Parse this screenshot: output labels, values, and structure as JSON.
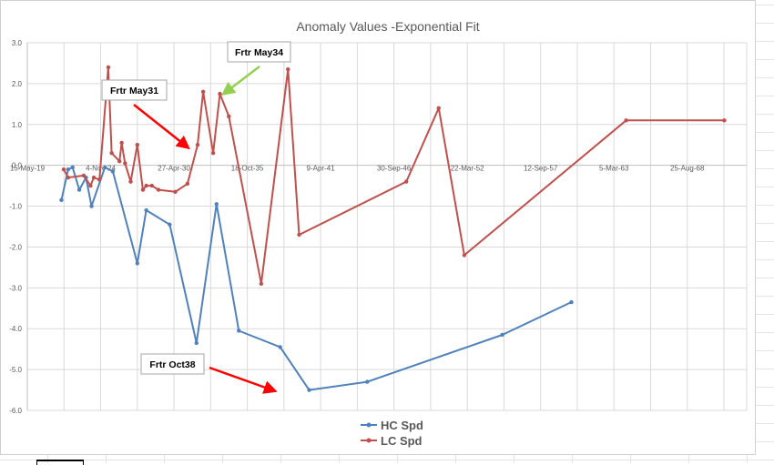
{
  "chart_data": {
    "type": "line",
    "title": "Anomaly Values -Exponential Fit",
    "xlabel": "",
    "ylabel": "",
    "ylim": [
      -6.0,
      3.0
    ],
    "y_ticks": [
      "3.0",
      "2.0",
      "1.0",
      "0.0",
      "-1.0",
      "-2.0",
      "-3.0",
      "-4.0",
      "-5.0",
      "-6.0"
    ],
    "x_ticks": [
      "15-May-19",
      "4-Nov-24",
      "27-Apr-30",
      "18-Oct-35",
      "9-Apr-41",
      "30-Sep-46",
      "22-Mar-52",
      "12-Sep-57",
      "5-Mar-63",
      "25-Aug-68"
    ],
    "grid": true,
    "legend_position": "bottom",
    "series": [
      {
        "name": "HC Spd",
        "color": "#4f81bd",
        "x": [
          "1921-12-01",
          "1922-06-01",
          "1922-10-01",
          "1923-04-01",
          "1923-10-01",
          "1924-03-01",
          "1925-03-01",
          "1925-10-01",
          "1927-08-01",
          "1928-04-01",
          "1930-01-01",
          "1932-01-01",
          "1933-07-01",
          "1935-03-01",
          "1938-04-01",
          "1940-06-01",
          "1944-10-01",
          "1954-11-01",
          "1960-01-01"
        ],
        "values": [
          -0.85,
          -0.1,
          -0.05,
          -0.6,
          -0.3,
          -1.0,
          -0.05,
          -0.15,
          -2.4,
          -1.1,
          -1.45,
          -4.35,
          -0.95,
          -4.05,
          -4.45,
          -5.5,
          -5.3,
          -4.15,
          -3.35
        ]
      },
      {
        "name": "LC Spd",
        "color": "#c0504d",
        "x": [
          "1922-02-01",
          "1922-06-01",
          "1923-08-01",
          "1924-02-01",
          "1924-05-01",
          "1924-10-01",
          "1925-06-01",
          "1925-09-01",
          "1926-04-01",
          "1926-06-01",
          "1926-09-01",
          "1927-02-01",
          "1927-08-01",
          "1928-01-01",
          "1928-04-01",
          "1928-09-01",
          "1929-03-01",
          "1930-06-01",
          "1931-05-01",
          "1932-02-01",
          "1932-07-01",
          "1933-04-01",
          "1933-10-01",
          "1934-06-01",
          "1936-11-01",
          "1938-11-01",
          "1939-09-01",
          "1947-09-01",
          "1950-02-01",
          "1952-01-01",
          "1964-02-01",
          "1971-06-01"
        ],
        "values": [
          -0.1,
          -0.3,
          -0.25,
          -0.5,
          -0.3,
          -0.35,
          2.4,
          0.3,
          0.1,
          0.55,
          0.05,
          -0.4,
          0.5,
          -0.6,
          -0.5,
          -0.5,
          -0.6,
          -0.65,
          -0.45,
          0.5,
          1.8,
          0.3,
          1.75,
          1.2,
          -2.9,
          2.35,
          -1.7,
          -0.4,
          1.4,
          -2.2,
          1.1,
          1.1
        ]
      }
    ],
    "annotations": [
      {
        "text": "Frtr May34",
        "arrow_color": "#92d050"
      },
      {
        "text": "Frtr May31",
        "arrow_color": "#ff0000"
      },
      {
        "text": "Frtr Oct38",
        "arrow_color": "#ff0000"
      }
    ]
  }
}
